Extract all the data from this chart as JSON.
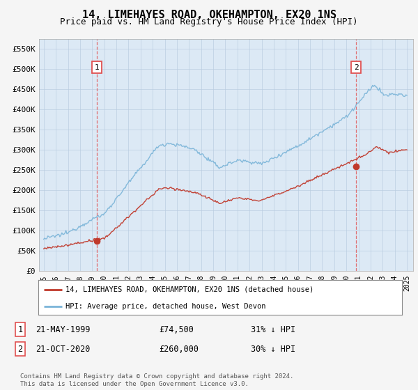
{
  "title": "14, LIMEHAYES ROAD, OKEHAMPTON, EX20 1NS",
  "subtitle": "Price paid vs. HM Land Registry's House Price Index (HPI)",
  "ylim": [
    0,
    575000
  ],
  "yticks": [
    0,
    50000,
    100000,
    150000,
    200000,
    250000,
    300000,
    350000,
    400000,
    450000,
    500000,
    550000
  ],
  "ytick_labels": [
    "£0",
    "£50K",
    "£100K",
    "£150K",
    "£200K",
    "£250K",
    "£300K",
    "£350K",
    "£400K",
    "£450K",
    "£500K",
    "£550K"
  ],
  "hpi_color": "#7ab4d8",
  "price_color": "#c0392b",
  "vline_color": "#e05050",
  "plot_bg_color": "#dce9f5",
  "marker1_year": 1999.38,
  "marker1_price": 74500,
  "marker2_year": 2020.8,
  "marker2_price": 260000,
  "legend_line1": "14, LIMEHAYES ROAD, OKEHAMPTON, EX20 1NS (detached house)",
  "legend_line2": "HPI: Average price, detached house, West Devon",
  "table_row1": [
    "1",
    "21-MAY-1999",
    "£74,500",
    "31% ↓ HPI"
  ],
  "table_row2": [
    "2",
    "21-OCT-2020",
    "£260,000",
    "30% ↓ HPI"
  ],
  "footnote": "Contains HM Land Registry data © Crown copyright and database right 2024.\nThis data is licensed under the Open Government Licence v3.0.",
  "fig_bg_color": "#f5f5f5"
}
